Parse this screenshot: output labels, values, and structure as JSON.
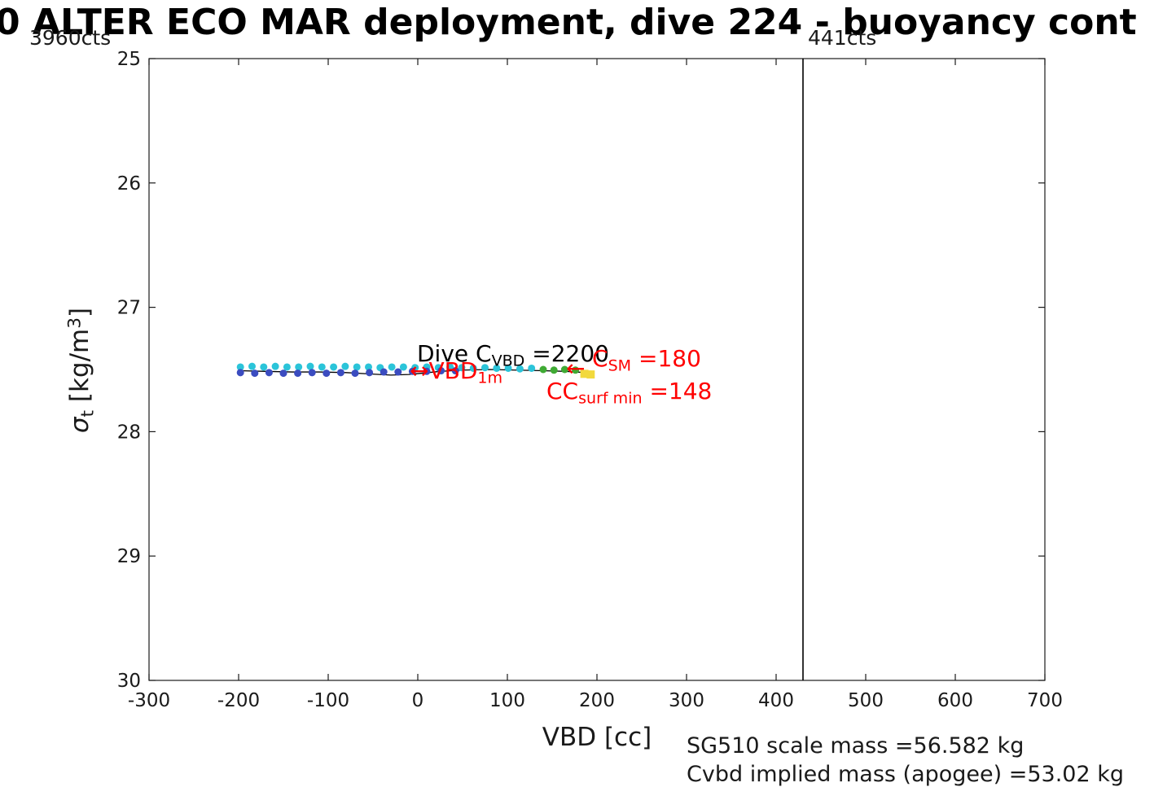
{
  "title": "0 ALTER ECO MAR deployment, dive 224 - buoyancy cont",
  "annotations": {
    "left_counts": "3960cts",
    "line_counts": "441cts",
    "dive_cvbd": {
      "pre": "Dive C",
      "sub": "VBD",
      "post": " =2200"
    },
    "vbd1m": {
      "pre": "↔VBD",
      "sub": "1m"
    },
    "arrow_left": "←",
    "c_sm": {
      "pre": "C",
      "sub": "SM",
      "post": " =180"
    },
    "cc_surf_min": {
      "pre": "CC",
      "sub": "surf min",
      "post": " =148"
    },
    "scale_mass": "SG510 scale mass =56.582 kg",
    "implied_mass": "Cvbd implied mass (apogee) =53.02 kg"
  },
  "axes": {
    "xlabel": "VBD [cc]",
    "ylabel": {
      "sigma": "σ",
      "sub": "t",
      "mid": " [kg/m",
      "sup": "3",
      "end": "]"
    },
    "xticks": [
      -300,
      -200,
      -100,
      0,
      100,
      200,
      300,
      400,
      500,
      600,
      700
    ],
    "yticks": [
      25,
      26,
      27,
      28,
      29,
      30
    ],
    "xlim": [
      -300,
      700
    ],
    "ylim": [
      25,
      30
    ]
  },
  "chart_data": {
    "type": "scatter",
    "title": "0 ALTER ECO MAR deployment, dive 224 - buoyancy (title clipped)",
    "xlabel": "VBD [cc]",
    "ylabel": "sigma_t [kg/m^3]",
    "xlim": [
      -300,
      700
    ],
    "ylim": [
      25,
      30
    ],
    "ydir": "reverse",
    "grid": false,
    "vline_x": 430,
    "series": [
      {
        "name": "profile-line",
        "type": "line",
        "color": "#000000",
        "points": [
          [
            -198,
            27.51
          ],
          [
            -170,
            27.515
          ],
          [
            -140,
            27.52
          ],
          [
            -110,
            27.52
          ],
          [
            -80,
            27.525
          ],
          [
            -55,
            27.535
          ],
          [
            -30,
            27.545
          ],
          [
            -10,
            27.54
          ],
          [
            5,
            27.53
          ],
          [
            25,
            27.515
          ],
          [
            50,
            27.505
          ],
          [
            80,
            27.5
          ],
          [
            110,
            27.505
          ],
          [
            140,
            27.51
          ],
          [
            165,
            27.515
          ],
          [
            188,
            27.525
          ]
        ]
      },
      {
        "name": "climb-points",
        "type": "marker",
        "marker": "dot",
        "color": "#2bc4d9",
        "points": [
          [
            -198,
            27.48
          ],
          [
            -185,
            27.475
          ],
          [
            -172,
            27.48
          ],
          [
            -159,
            27.475
          ],
          [
            -146,
            27.48
          ],
          [
            -133,
            27.48
          ],
          [
            -120,
            27.475
          ],
          [
            -107,
            27.48
          ],
          [
            -94,
            27.48
          ],
          [
            -81,
            27.475
          ],
          [
            -68,
            27.48
          ],
          [
            -55,
            27.48
          ],
          [
            -42,
            27.485
          ],
          [
            -29,
            27.48
          ],
          [
            -16,
            27.48
          ],
          [
            -3,
            27.485
          ],
          [
            10,
            27.48
          ],
          [
            23,
            27.485
          ],
          [
            36,
            27.48
          ],
          [
            49,
            27.485
          ],
          [
            62,
            27.49
          ],
          [
            75,
            27.485
          ],
          [
            88,
            27.49
          ],
          [
            101,
            27.49
          ],
          [
            114,
            27.495
          ],
          [
            127,
            27.49
          ]
        ]
      },
      {
        "name": "dive-points",
        "type": "marker",
        "marker": "dot",
        "color": "#3b4cc0",
        "points": [
          [
            -198,
            27.525
          ],
          [
            -182,
            27.53
          ],
          [
            -166,
            27.525
          ],
          [
            -150,
            27.53
          ],
          [
            -134,
            27.53
          ],
          [
            -118,
            27.525
          ],
          [
            -102,
            27.53
          ],
          [
            -86,
            27.525
          ],
          [
            -70,
            27.53
          ],
          [
            -54,
            27.525
          ],
          [
            -38,
            27.52
          ],
          [
            -22,
            27.52
          ],
          [
            -6,
            27.515
          ],
          [
            10,
            27.515
          ],
          [
            26,
            27.51
          ],
          [
            42,
            27.51
          ]
        ]
      },
      {
        "name": "near-surface-points",
        "type": "marker",
        "marker": "dot",
        "color": "#3faa34",
        "points": [
          [
            140,
            27.5
          ],
          [
            152,
            27.505
          ],
          [
            164,
            27.5
          ],
          [
            176,
            27.505
          ]
        ]
      },
      {
        "name": "apogee-marker",
        "type": "marker",
        "marker": "square",
        "color": "#f2d93c",
        "points": [
          [
            186,
            27.535
          ],
          [
            193,
            27.54
          ]
        ]
      }
    ]
  }
}
